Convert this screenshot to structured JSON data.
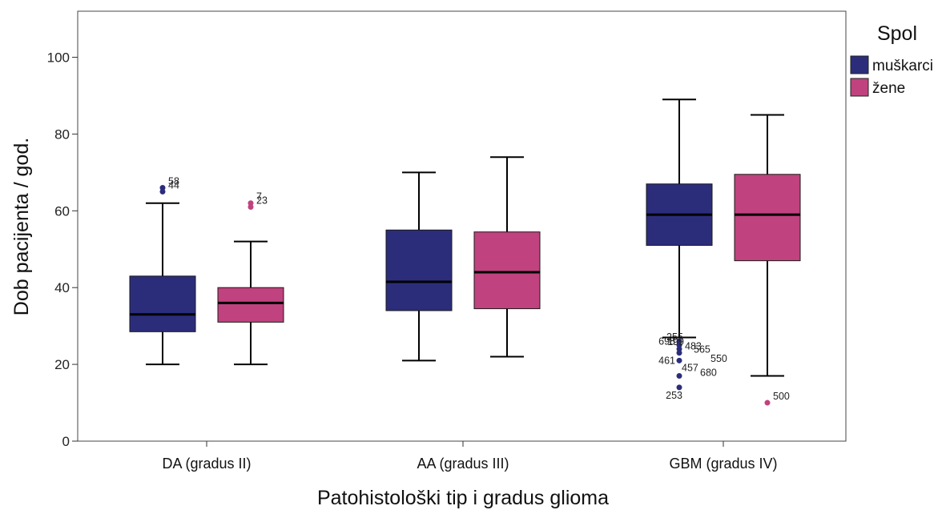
{
  "chart_data": {
    "type": "box",
    "xlabel": "Patohistološki tip i gradus glioma",
    "ylabel": "Dob pacijenta / god.",
    "ylim": [
      0,
      112
    ],
    "yticks": [
      0,
      20,
      40,
      60,
      80,
      100
    ],
    "categories": [
      "DA (gradus II)",
      "AA (gradus III)",
      "GBM (gradus IV)"
    ],
    "legend": {
      "title": "Spol",
      "position": "top-right",
      "entries": [
        {
          "name": "muškarci",
          "color": "#2b2d7b"
        },
        {
          "name": "žene",
          "color": "#c0427e"
        }
      ]
    },
    "series": [
      {
        "name": "muškarci",
        "color": "#2b2d7b",
        "boxes": [
          {
            "category": "DA (gradus II)",
            "whisker_low": 20,
            "q1": 28.5,
            "median": 33,
            "q3": 43,
            "whisker_high": 62,
            "outliers": [
              {
                "value": 66,
                "label": "58"
              },
              {
                "value": 65,
                "label": "44"
              }
            ]
          },
          {
            "category": "AA (gradus III)",
            "whisker_low": 21,
            "q1": 34,
            "median": 41.5,
            "q3": 55,
            "whisker_high": 70,
            "outliers": []
          },
          {
            "category": "GBM (gradus IV)",
            "whisker_low": 27,
            "q1": 51,
            "median": 59,
            "q3": 67,
            "whisker_high": 89,
            "outliers": [
              {
                "value": 26,
                "label": "698"
              },
              {
                "value": 25,
                "label": "255"
              },
              {
                "value": 24,
                "label": "199"
              },
              {
                "value": 23,
                "label": "483"
              },
              {
                "value": 21,
                "label": "461"
              },
              {
                "value": 17,
                "label": "457"
              },
              {
                "value": 14,
                "label": "253"
              }
            ],
            "extra_labels": [
              "565",
              "550",
              "680"
            ]
          }
        ]
      },
      {
        "name": "žene",
        "color": "#c0427e",
        "boxes": [
          {
            "category": "DA (gradus II)",
            "whisker_low": 20,
            "q1": 31,
            "median": 36,
            "q3": 40,
            "whisker_high": 52,
            "outliers": [
              {
                "value": 62,
                "label": "7"
              },
              {
                "value": 61,
                "label": "23"
              }
            ]
          },
          {
            "category": "AA (gradus III)",
            "whisker_low": 22,
            "q1": 34.5,
            "median": 44,
            "q3": 54.5,
            "whisker_high": 74,
            "outliers": []
          },
          {
            "category": "GBM (gradus IV)",
            "whisker_low": 17,
            "q1": 47,
            "median": 59,
            "q3": 69.5,
            "whisker_high": 85,
            "outliers": [
              {
                "value": 10,
                "label": "500"
              }
            ]
          }
        ]
      }
    ]
  }
}
